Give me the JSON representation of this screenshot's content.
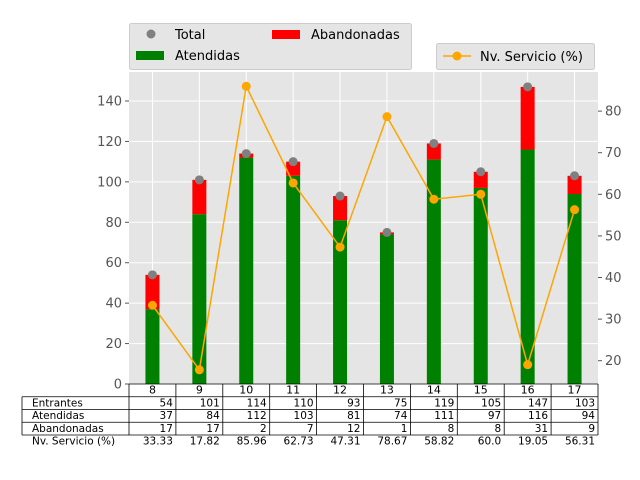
{
  "chart_data": {
    "type": "bar",
    "categories": [
      "8",
      "9",
      "10",
      "11",
      "12",
      "13",
      "14",
      "15",
      "16",
      "17"
    ],
    "series": [
      {
        "name": "Atendidas",
        "kind": "stacked-bar",
        "color": "#008000",
        "values": [
          37,
          84,
          112,
          103,
          81,
          74,
          111,
          97,
          116,
          94
        ]
      },
      {
        "name": "Abandonadas",
        "kind": "stacked-bar",
        "color": "#ff0000",
        "values": [
          17,
          17,
          2,
          7,
          12,
          1,
          8,
          8,
          31,
          9
        ]
      },
      {
        "name": "Total",
        "kind": "scatter",
        "color": "#808080",
        "values": [
          54,
          101,
          114,
          110,
          93,
          75,
          119,
          105,
          147,
          103
        ]
      },
      {
        "name": "Nv. Servicio (%)",
        "kind": "line",
        "axis": "right",
        "color": "#ffa500",
        "values": [
          33.33,
          17.82,
          85.96,
          62.73,
          47.31,
          78.67,
          58.82,
          60.0,
          19.05,
          56.31
        ]
      }
    ],
    "left_axis": {
      "ticks": [
        "0",
        "20",
        "40",
        "60",
        "80",
        "100",
        "120",
        "140"
      ],
      "ylim": [
        0,
        154.35
      ]
    },
    "right_axis": {
      "ticks": [
        "20",
        "30",
        "40",
        "50",
        "60",
        "70",
        "80"
      ],
      "ylim": [
        14.4,
        89.4
      ]
    },
    "grid": true,
    "legend_left": {
      "placement": "top-left",
      "entries": [
        "Total",
        "Atendidas",
        "Abandonadas"
      ]
    },
    "legend_right": {
      "placement": "top-right",
      "entries": [
        "Nv. Servicio (%)"
      ]
    },
    "table": {
      "rows": [
        {
          "label": "Entrantes",
          "values": [
            "54",
            "101",
            "114",
            "110",
            "93",
            "75",
            "119",
            "105",
            "147",
            "103"
          ]
        },
        {
          "label": "Atendidas",
          "values": [
            "37",
            "84",
            "112",
            "103",
            "81",
            "74",
            "111",
            "97",
            "116",
            "94"
          ]
        },
        {
          "label": "Abandonadas",
          "values": [
            "17",
            "17",
            "2",
            "7",
            "12",
            "1",
            "8",
            "8",
            "31",
            "9"
          ]
        },
        {
          "label": "Nv. Servicio (%)",
          "values": [
            "33.33",
            "17.82",
            "85.96",
            "62.73",
            "47.31",
            "78.67",
            "58.82",
            "60.0",
            "19.05",
            "56.31"
          ]
        }
      ]
    }
  }
}
